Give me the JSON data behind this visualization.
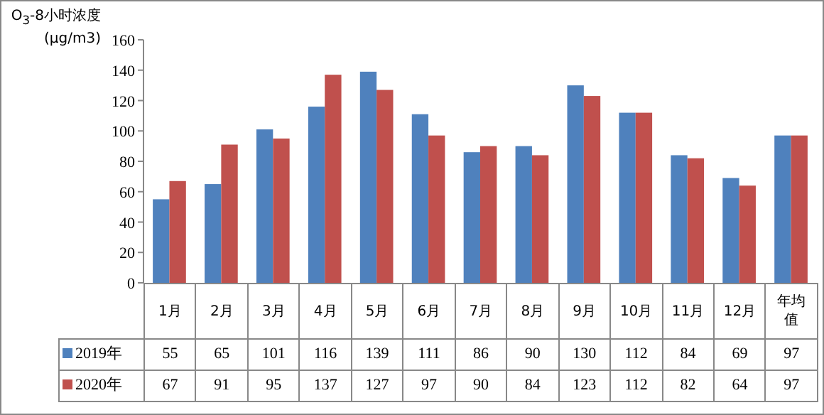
{
  "chart_data": {
    "type": "bar",
    "ylabel": "O$_{3}$-8小时浓度(μg/m3)",
    "categories": [
      "1月",
      "2月",
      "3月",
      "4月",
      "5月",
      "6月",
      "7月",
      "8月",
      "9月",
      "10月",
      "11月",
      "12月",
      "年均值"
    ],
    "series": [
      {
        "name": "2019年",
        "color": "#4f81bd",
        "values": [
          55,
          65,
          101,
          116,
          139,
          111,
          86,
          90,
          130,
          112,
          84,
          69,
          97
        ]
      },
      {
        "name": "2020年",
        "color": "#c0504d",
        "values": [
          67,
          91,
          95,
          137,
          127,
          97,
          90,
          84,
          123,
          112,
          82,
          64,
          97
        ]
      }
    ],
    "ylim": [
      0,
      160
    ],
    "yticks": [
      0,
      20,
      40,
      60,
      80,
      100,
      120,
      140,
      160
    ],
    "data_labels": true,
    "legend": "bottom"
  }
}
